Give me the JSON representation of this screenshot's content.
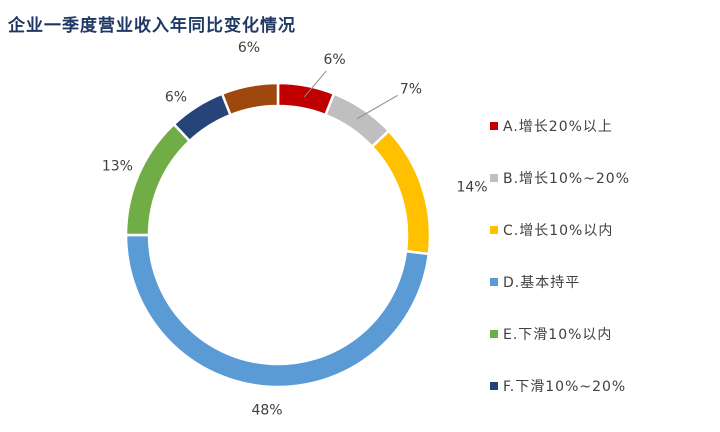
{
  "chart_data": {
    "type": "pie",
    "title": "企业一季度营业收入年同比变化情况",
    "categories": [
      "A.增长20%以上",
      "B.增长10%~20%",
      "C.增长10%以内",
      "D.基本持平",
      "E.下滑10%以内",
      "F.下滑10%~20%",
      ""
    ],
    "values": [
      6,
      7,
      14,
      48,
      13,
      6,
      6
    ],
    "data_labels": [
      "6%",
      "7%",
      "14%",
      "48%",
      "13%",
      "6%",
      "6%"
    ],
    "colors": [
      "#c00000",
      "#bfbfbf",
      "#ffc000",
      "#5b9bd5",
      "#70ad47",
      "#264478",
      "#9e480e"
    ],
    "donut": true,
    "legend_position": "right"
  }
}
